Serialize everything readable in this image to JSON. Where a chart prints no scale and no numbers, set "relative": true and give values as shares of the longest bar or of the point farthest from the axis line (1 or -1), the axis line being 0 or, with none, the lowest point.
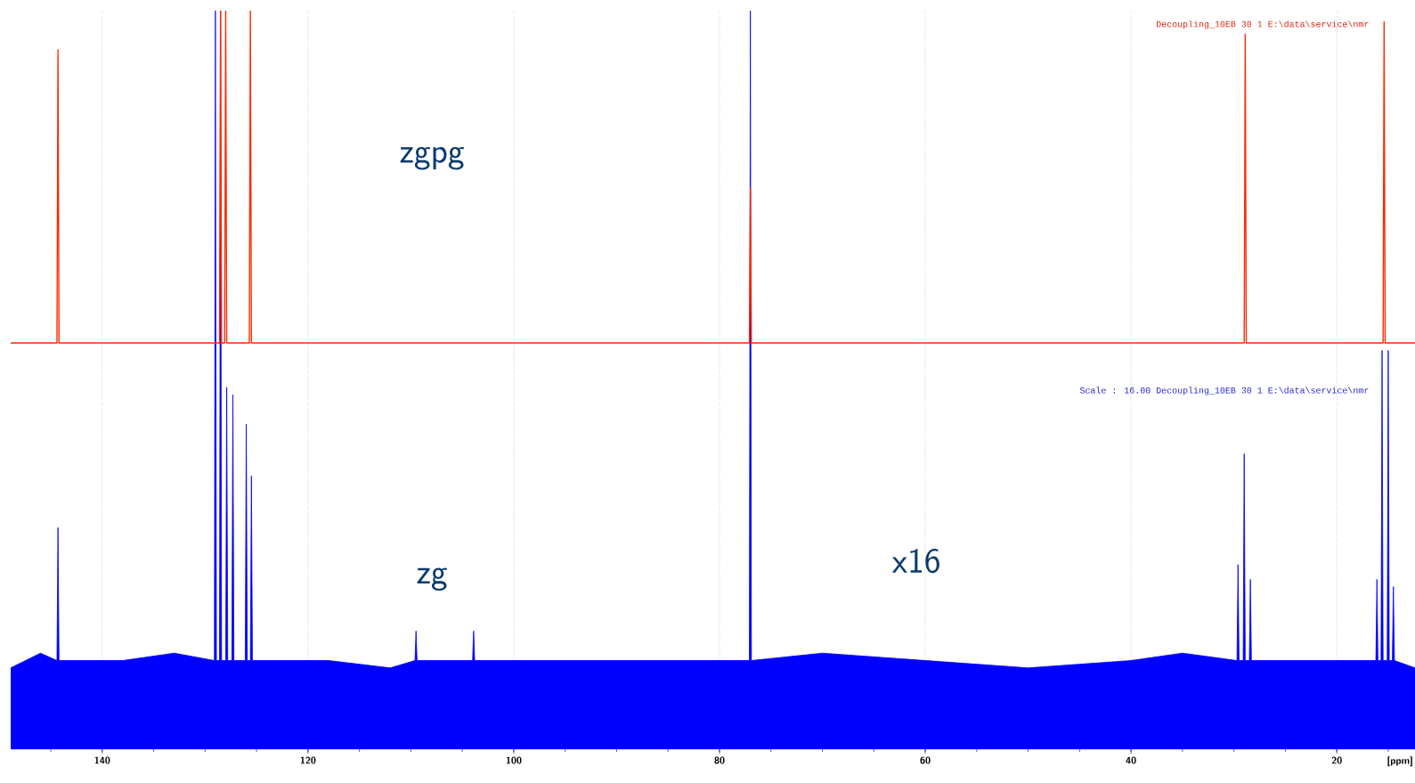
{
  "chart_data": {
    "type": "line",
    "relative": true,
    "xlabel": "[ppm]",
    "xlim": [
      148.9,
      12.4
    ],
    "xticks": [
      140,
      120,
      100,
      80,
      60,
      40,
      20
    ],
    "grid": true,
    "annotations": [
      "zgpg",
      "zg",
      "x16",
      "Scale : 16.00   Decoupling_10EB  30  1  E:\\data\\service\\nmr",
      "Decoupling_10EB  30  1  E:\\data\\service\\nmr"
    ],
    "series": [
      {
        "type": "area",
        "color": "#0000ff",
        "x": [
          148.9,
          146,
          144.4,
          144.3,
          144.2,
          138,
          133,
          129.1,
          129.0,
          128.9,
          128.6,
          128.5,
          128.4,
          128.0,
          127.9,
          127.8,
          127.4,
          127.3,
          127.2,
          126.1,
          126.0,
          125.9,
          125.6,
          125.5,
          125.4,
          118,
          112,
          109.6,
          109.5,
          109.4,
          104.0,
          103.9,
          103.8,
          95,
          85,
          77.1,
          77.0,
          76.9,
          70,
          60,
          50,
          40,
          35,
          29.7,
          29.6,
          29.5,
          29.1,
          29.0,
          28.9,
          28.5,
          28.4,
          28.3,
          22,
          16.2,
          16.1,
          16.0,
          15.7,
          15.6,
          15.5,
          15.1,
          15.0,
          14.9,
          14.6,
          14.5,
          14.4,
          12.4
        ],
        "values": [
          0.11,
          0.13,
          0.12,
          0.3,
          0.12,
          0.12,
          0.13,
          0.12,
          1,
          0.12,
          0.12,
          1,
          0.12,
          0.12,
          0.49,
          0.12,
          0.12,
          0.48,
          0.12,
          0.12,
          0.44,
          0.12,
          0.12,
          0.37,
          0.12,
          0.12,
          0.11,
          0.12,
          0.16,
          0.12,
          0.12,
          0.16,
          0.12,
          0.12,
          0.12,
          0.12,
          1,
          0.12,
          0.13,
          0.12,
          0.11,
          0.12,
          0.13,
          0.12,
          0.25,
          0.12,
          0.12,
          0.4,
          0.12,
          0.12,
          0.23,
          0.12,
          0.12,
          0.12,
          0.23,
          0.12,
          0.12,
          0.54,
          0.12,
          0.12,
          0.54,
          0.12,
          0.12,
          0.22,
          0.12,
          0.11
        ]
      },
      {
        "color": "#ff2a00",
        "x": [
          148.9,
          144.4,
          144.3,
          144.2,
          128.6,
          128.5,
          128.4,
          128.1,
          128.0,
          127.9,
          125.7,
          125.6,
          125.5,
          77.1,
          77.0,
          76.9,
          29.0,
          28.9,
          28.8,
          15.5,
          15.4,
          15.3,
          12.4
        ],
        "values": [
          0.55,
          0.55,
          0.947,
          0.55,
          0.55,
          1,
          0.55,
          0.55,
          1,
          0.55,
          0.55,
          1,
          0.55,
          0.55,
          0.76,
          0.55,
          0.55,
          0.968,
          0.55,
          0.55,
          0.985,
          0.55,
          0.55
        ]
      }
    ]
  }
}
